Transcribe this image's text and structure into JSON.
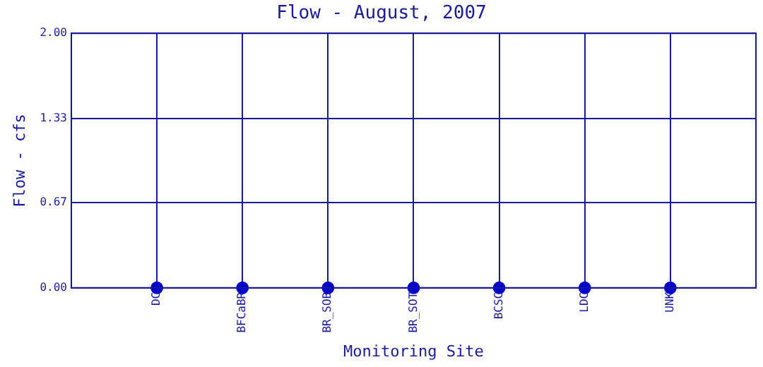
{
  "chart_data": {
    "type": "scatter",
    "title": "Flow - August, 2007",
    "xlabel": "Monitoring Site",
    "ylabel": "Flow - cfs",
    "categories": [
      "DC",
      "BFCaBR",
      "BR_SOB",
      "BR_SOT",
      "BCSC",
      "LDC",
      "UNK"
    ],
    "series": [
      {
        "color": "#0000cc",
        "values": [
          0,
          0,
          0,
          0,
          0,
          0,
          0
        ]
      }
    ],
    "ylim": [
      0,
      2
    ],
    "yticks": [
      {
        "value": 0,
        "label": "0.00"
      },
      {
        "value": 0.67,
        "label": "0.67"
      },
      {
        "value": 1.33,
        "label": "1.33"
      },
      {
        "value": 2,
        "label": "2.00"
      }
    ],
    "grid": true,
    "marker": "circle",
    "legend": false
  }
}
